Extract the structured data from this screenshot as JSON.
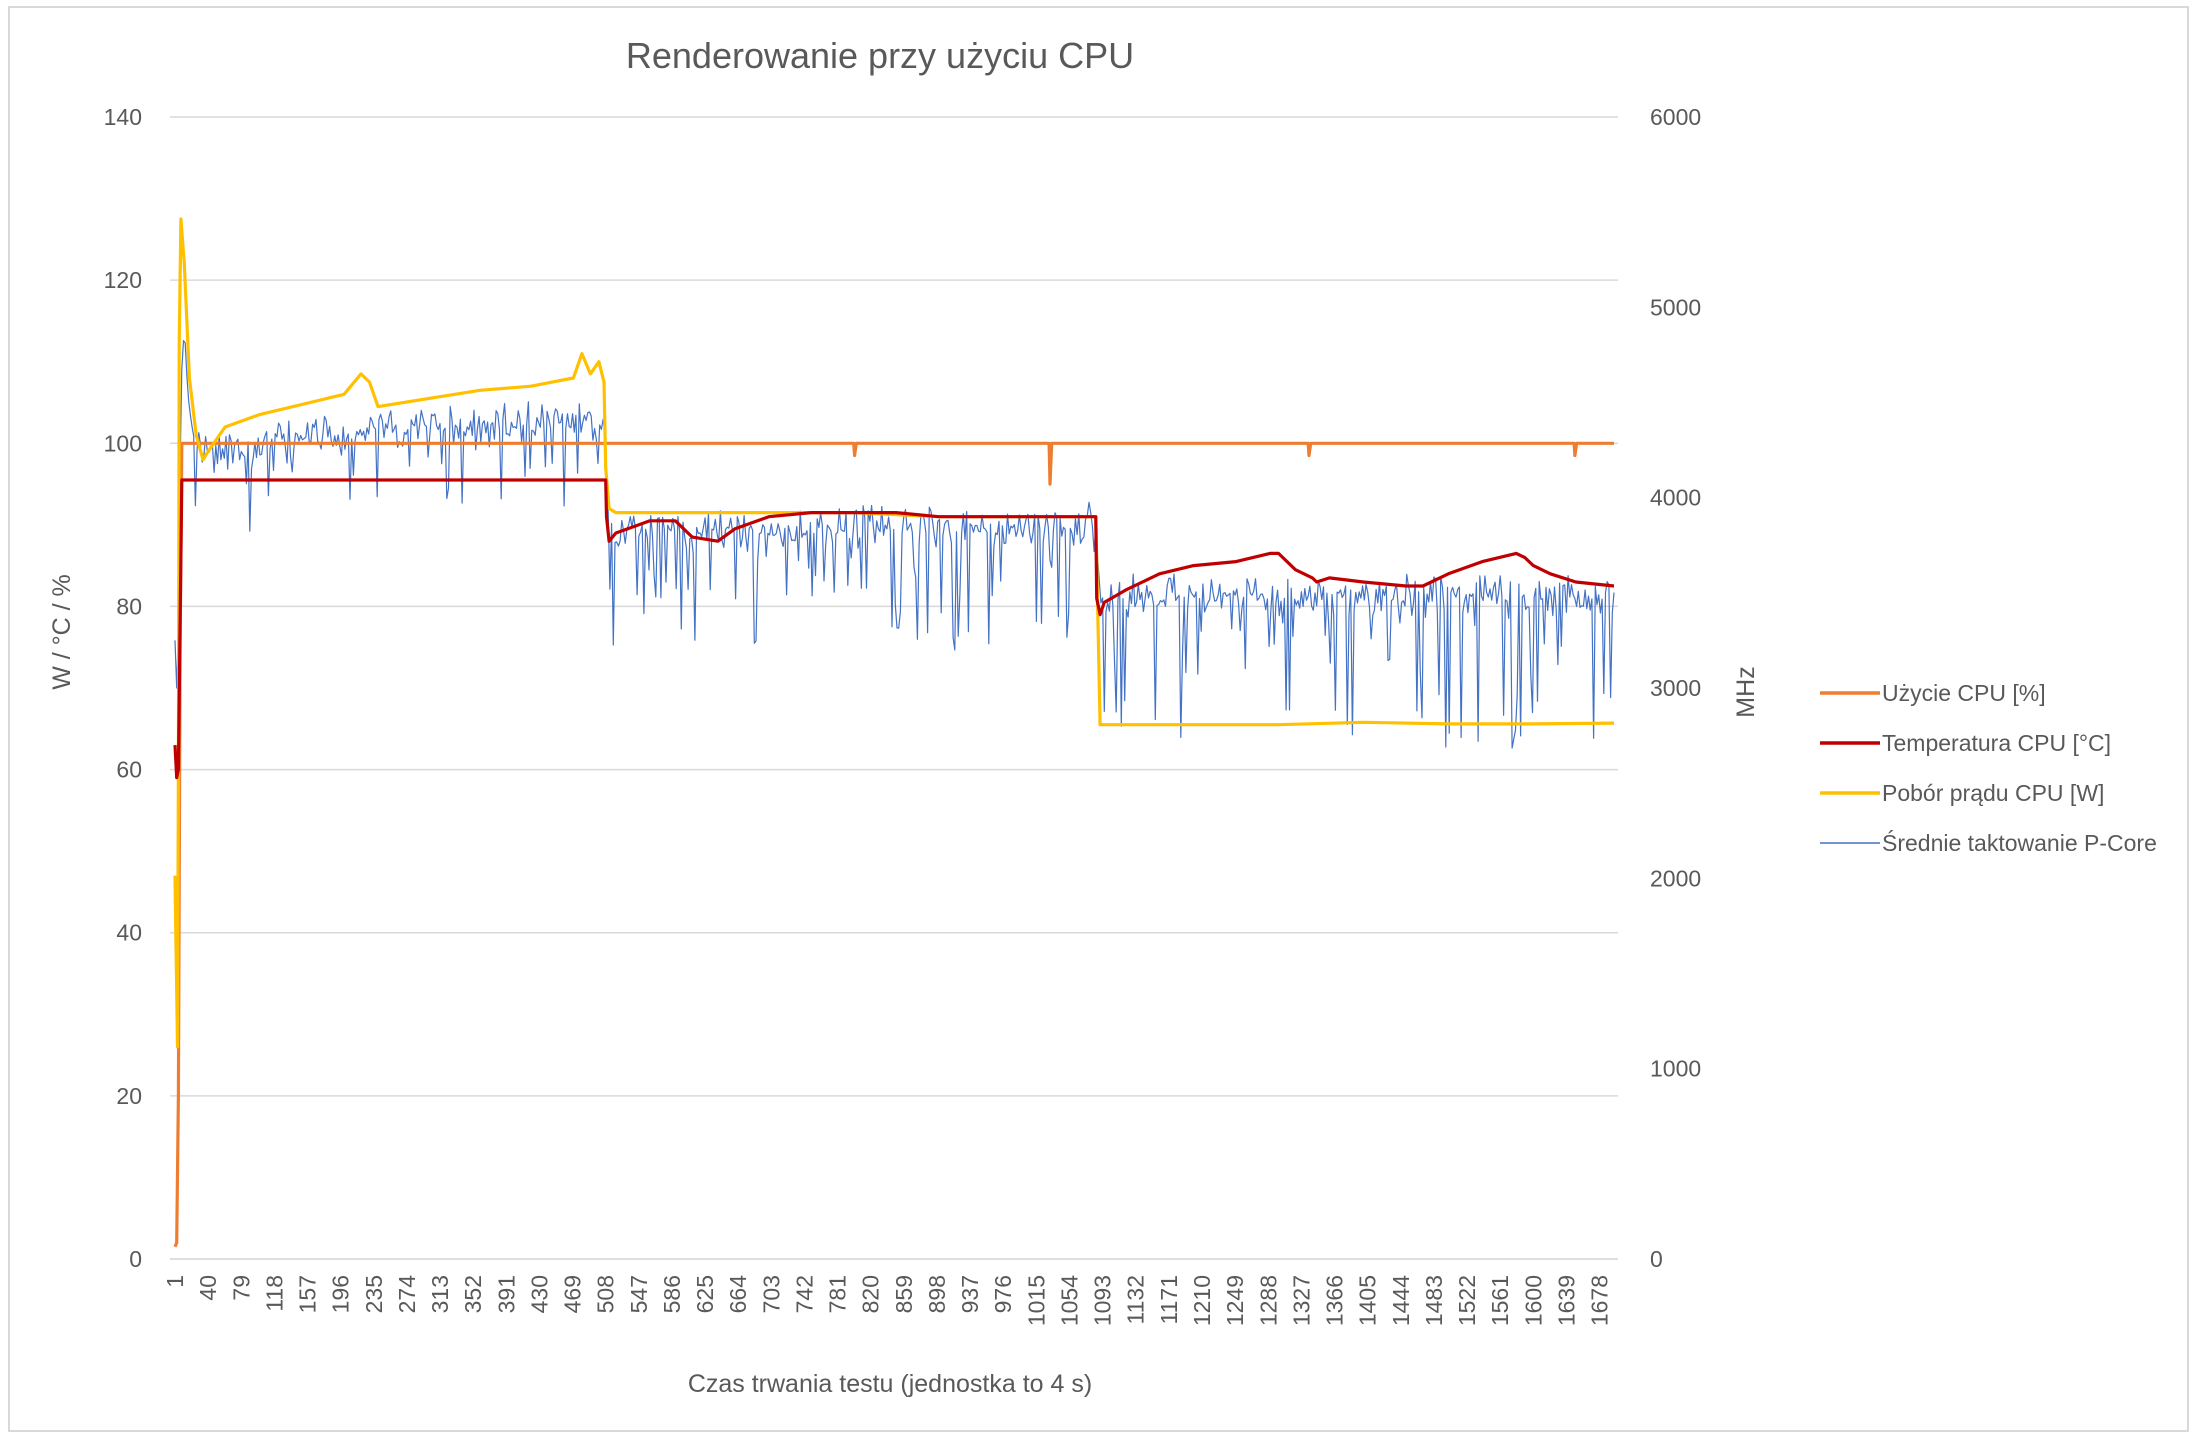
{
  "chart_data": {
    "type": "line",
    "title": "Renderowanie przy użyciu CPU",
    "xlabel": "Czas trwania testu (jednostka to 4 s)",
    "ylabel_left": "W / °C / %",
    "ylabel_right": "MHz",
    "ylim_left": [
      0,
      140
    ],
    "ylim_right": [
      0,
      6000
    ],
    "yticks_left": [
      "0",
      "20",
      "40",
      "60",
      "80",
      "100",
      "120",
      "140"
    ],
    "yticks_right": [
      "0",
      "1000",
      "2000",
      "3000",
      "4000",
      "5000",
      "6000"
    ],
    "xlim": [
      1,
      1695
    ],
    "xticks": [
      "1",
      "40",
      "79",
      "118",
      "157",
      "196",
      "235",
      "274",
      "313",
      "352",
      "391",
      "430",
      "469",
      "508",
      "547",
      "586",
      "625",
      "664",
      "703",
      "742",
      "781",
      "820",
      "859",
      "898",
      "937",
      "976",
      "1015",
      "1054",
      "1093",
      "1132",
      "1171",
      "1210",
      "1249",
      "1288",
      "1327",
      "1366",
      "1405",
      "1444",
      "1483",
      "1522",
      "1561",
      "1600",
      "1639",
      "1678"
    ],
    "grid": true,
    "legend_position": "right",
    "series": [
      {
        "name": "Użycie CPU [%]",
        "axis": "left",
        "color": "#ED7D31",
        "x": [
          1,
          3,
          5,
          7,
          9,
          12,
          20,
          100,
          300,
          506,
          508,
          520,
          700,
          800,
          801,
          803,
          1000,
          1030,
          1031,
          1033,
          1200,
          1335,
          1336,
          1338,
          1500,
          1648,
          1649,
          1651,
          1695
        ],
        "values": [
          1.5,
          2,
          20,
          75,
          100,
          100,
          100,
          100,
          100,
          100,
          100,
          100,
          100,
          100,
          98.5,
          100,
          100,
          100,
          95,
          100,
          100,
          100,
          98.5,
          100,
          100,
          100,
          98.5,
          100,
          100
        ]
      },
      {
        "name": "Temperatura CPU [°C]",
        "axis": "left",
        "color": "#C00000",
        "x": [
          1,
          3,
          5,
          7,
          9,
          508,
          509,
          512,
          520,
          560,
          590,
          610,
          640,
          660,
          700,
          750,
          800,
          850,
          900,
          950,
          1000,
          1050,
          1085,
          1086,
          1090,
          1095,
          1120,
          1160,
          1200,
          1250,
          1290,
          1300,
          1320,
          1340,
          1345,
          1360,
          1400,
          1450,
          1470,
          1500,
          1540,
          1580,
          1590,
          1600,
          1620,
          1650,
          1695
        ],
        "values": [
          63,
          59,
          60,
          78,
          95.5,
          95.5,
          91,
          88,
          89,
          90.5,
          90.5,
          88.5,
          88,
          89.5,
          91,
          91.5,
          91.5,
          91.5,
          91,
          91,
          91,
          91,
          91,
          81,
          79,
          80.5,
          82,
          84,
          85,
          85.5,
          86.5,
          86.5,
          84.5,
          83.5,
          83,
          83.5,
          83,
          82.5,
          82.5,
          84,
          85.5,
          86.5,
          86,
          85,
          84,
          83,
          82.5
        ]
      },
      {
        "name": "Pobór prądu CPU [W]",
        "axis": "left",
        "color": "#FFC000",
        "x": [
          1,
          2,
          3,
          4,
          5,
          6,
          8,
          12,
          18,
          26,
          34,
          40,
          60,
          100,
          160,
          200,
          220,
          230,
          240,
          300,
          360,
          420,
          470,
          480,
          490,
          500,
          506,
          508,
          512,
          520,
          600,
          700,
          800,
          900,
          1000,
          1085,
          1090,
          1095,
          1200,
          1300,
          1400,
          1500,
          1600,
          1695
        ],
        "values": [
          47,
          40,
          33,
          26,
          60,
          112,
          127.5,
          122,
          108,
          101,
          98,
          99,
          102,
          103.5,
          105,
          106,
          108.5,
          107.5,
          104.5,
          105.5,
          106.5,
          107,
          108,
          111,
          108.5,
          110,
          107.5,
          97,
          92,
          91.5,
          91.5,
          91.5,
          91.5,
          91,
          91,
          91,
          65.5,
          65.5,
          65.5,
          65.5,
          65.8,
          65.6,
          65.6,
          65.7
        ]
      },
      {
        "name": "Średnie taktowanie P-Core",
        "axis": "right",
        "color": "#4472C4",
        "x": [
          1,
          2,
          3,
          5,
          8,
          12,
          16,
          20,
          40,
          100,
          200,
          300,
          400,
          500,
          506,
          510,
          515,
          600,
          700,
          800,
          900,
          1000,
          1050,
          1085,
          1090,
          1100,
          1200,
          1300,
          1400,
          1500,
          1600,
          1695
        ],
        "values": [
          3250,
          3100,
          3000,
          3300,
          4600,
          4900,
          4550,
          4400,
          4300,
          4350,
          4400,
          4450,
          4450,
          4450,
          4500,
          4000,
          3900,
          3900,
          3900,
          3920,
          3900,
          3900,
          3900,
          3950,
          3500,
          3550,
          3550,
          3550,
          3550,
          3550,
          3540,
          3550
        ]
      }
    ]
  }
}
